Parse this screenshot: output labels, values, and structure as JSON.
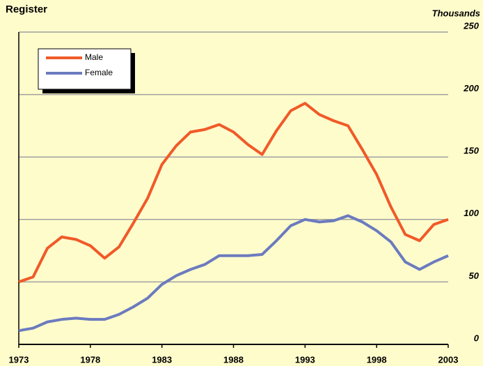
{
  "chart_data": {
    "type": "line",
    "title": "Register",
    "y_unit_label": "Thousands",
    "x": [
      1973,
      1974,
      1975,
      1976,
      1977,
      1978,
      1979,
      1980,
      1981,
      1982,
      1983,
      1984,
      1985,
      1986,
      1987,
      1988,
      1989,
      1990,
      1991,
      1992,
      1993,
      1994,
      1995,
      1996,
      1997,
      1998,
      1999,
      2000,
      2001,
      2002,
      2003
    ],
    "series": [
      {
        "name": "Male",
        "color": "#f05a28",
        "values": [
          50,
          54,
          77,
          86,
          84,
          79,
          69,
          78,
          97,
          117,
          144,
          159,
          170,
          172,
          176,
          170,
          160,
          152,
          171,
          187,
          193,
          184,
          179,
          175,
          156,
          136,
          110,
          88,
          83,
          96,
          100
        ]
      },
      {
        "name": "Female",
        "color": "#6b7bbf",
        "values": [
          11,
          13,
          18,
          20,
          21,
          20,
          20,
          24,
          30,
          37,
          48,
          55,
          60,
          64,
          71,
          71,
          71,
          72,
          83,
          95,
          100,
          98,
          99,
          103,
          98,
          91,
          82,
          66,
          60,
          66,
          71
        ]
      }
    ],
    "xlim": [
      1973,
      2003
    ],
    "xticks": [
      1973,
      1978,
      1983,
      1988,
      1993,
      1998,
      2003
    ],
    "ylim": [
      0,
      250
    ],
    "yticks": [
      0,
      50,
      100,
      150,
      200,
      250
    ],
    "grid": true,
    "legend": "top-left"
  }
}
